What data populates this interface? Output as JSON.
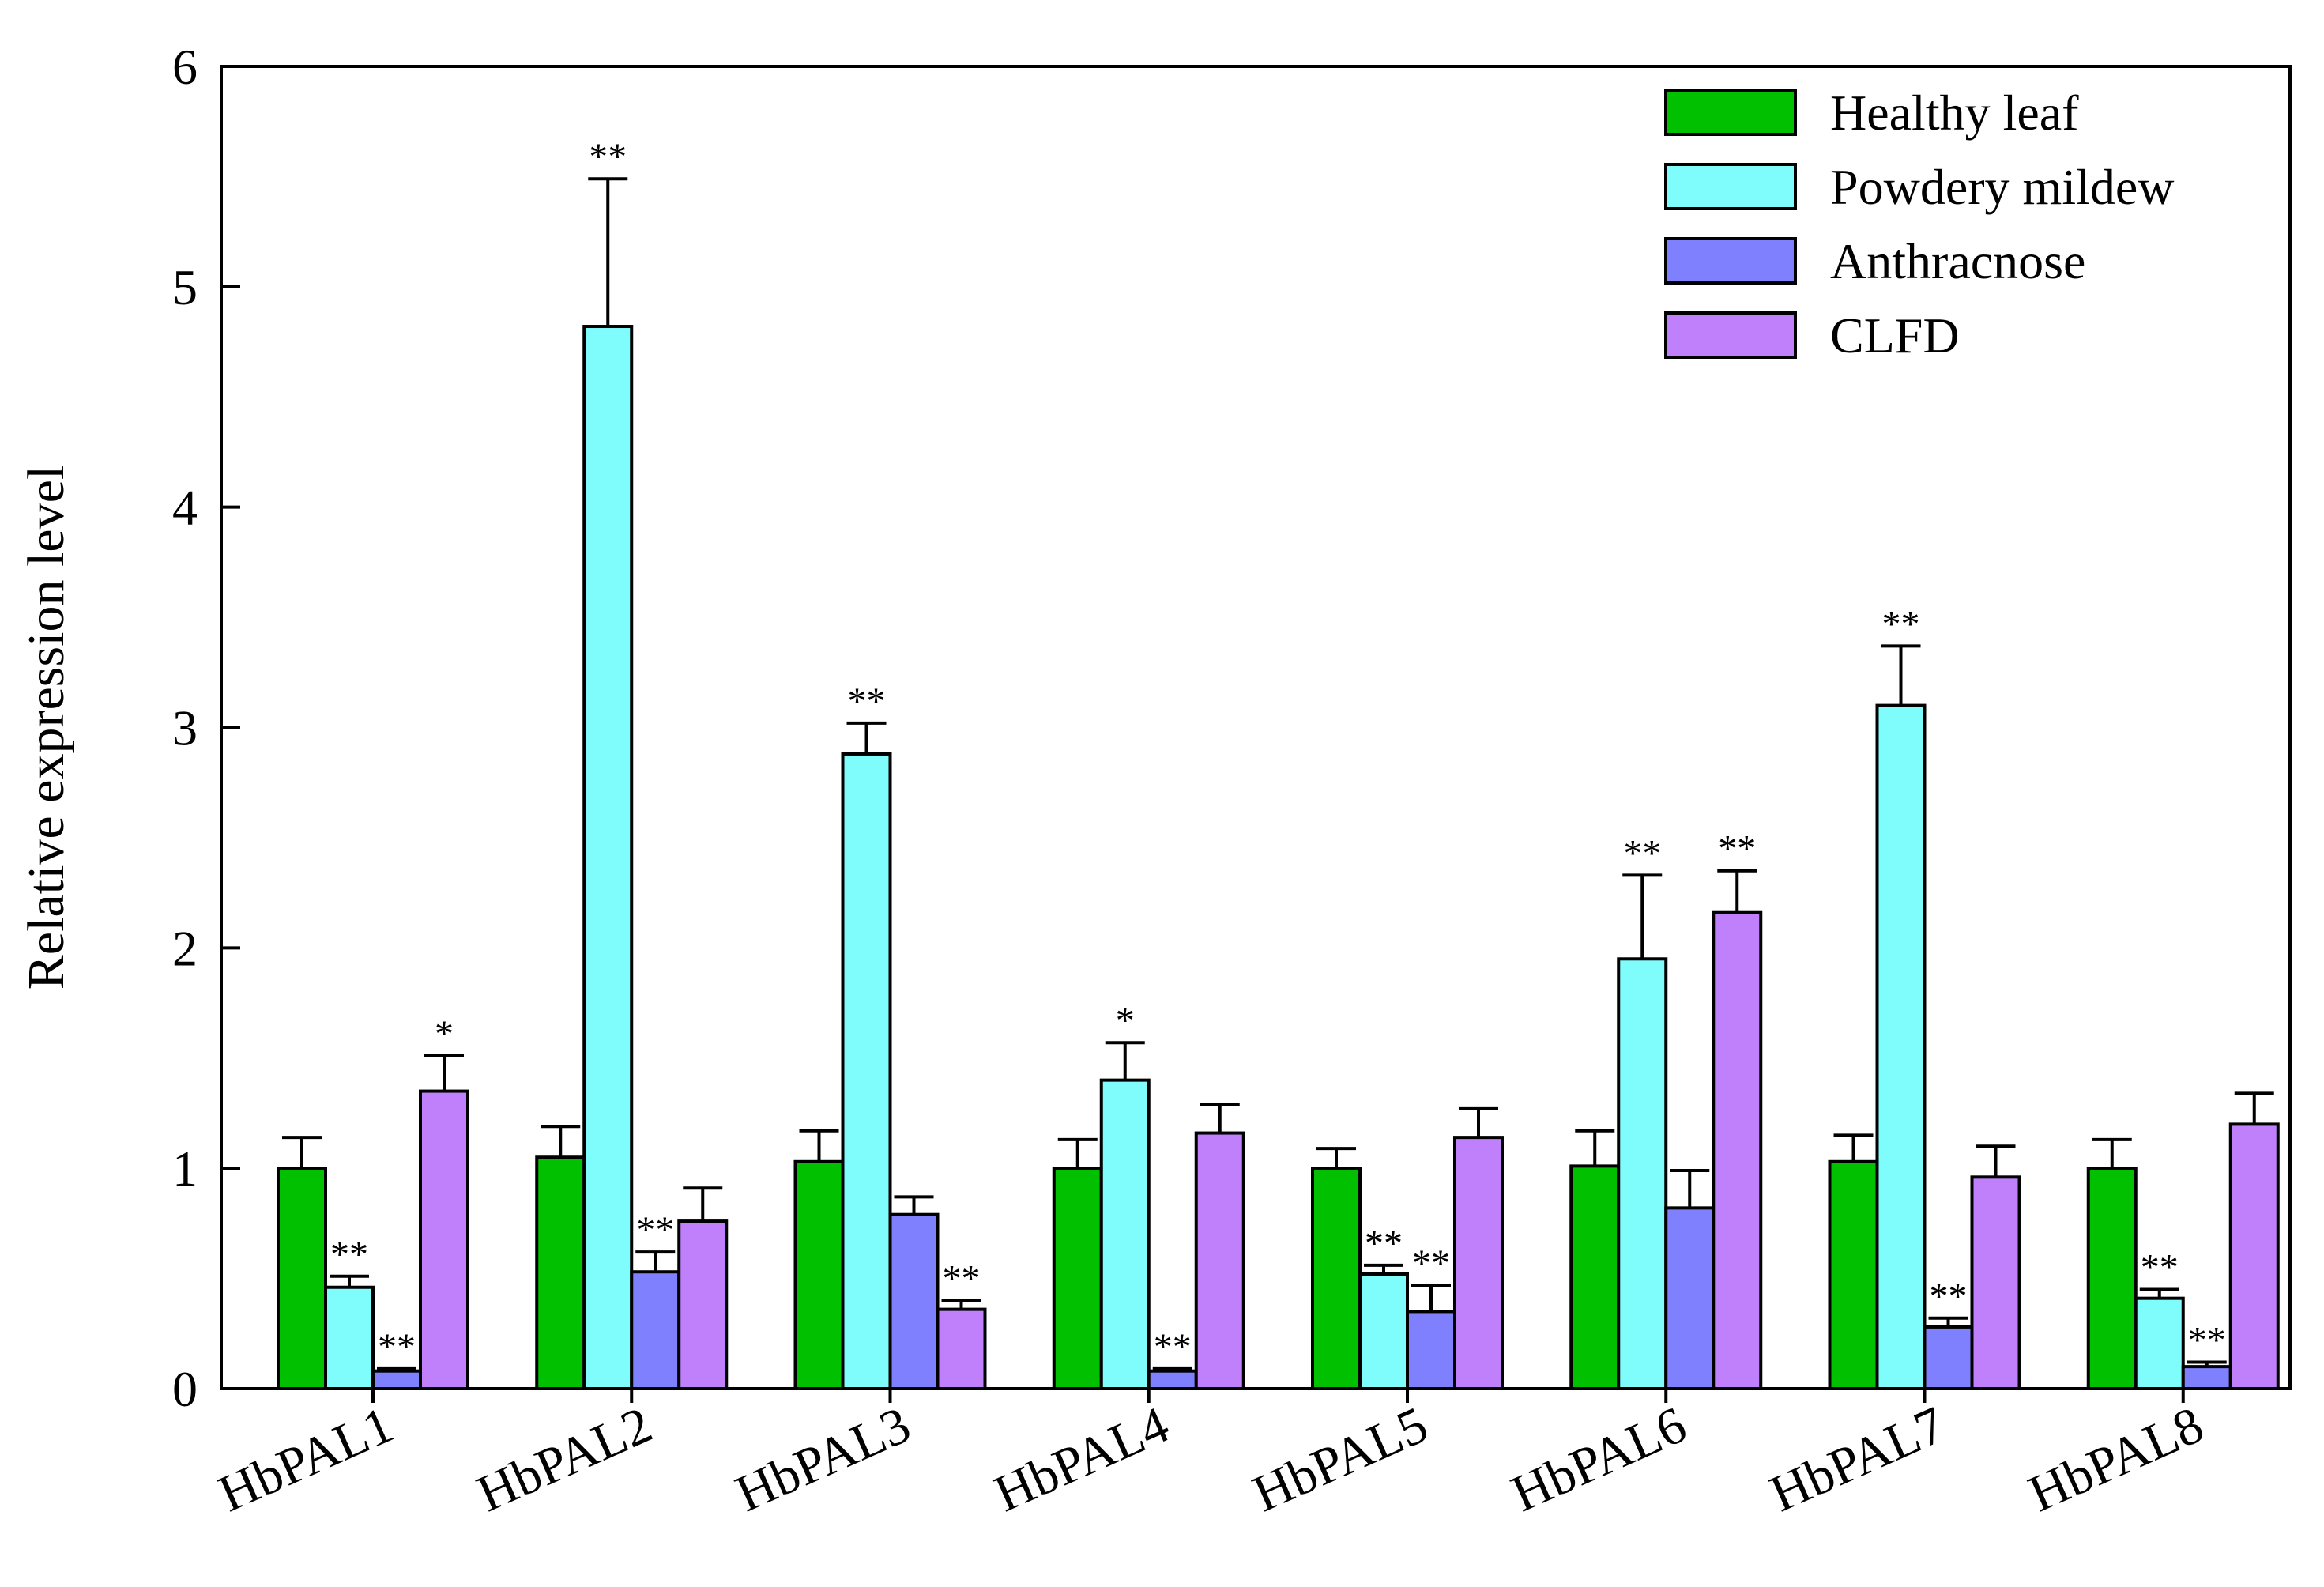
{
  "chart_data": {
    "type": "bar",
    "title": "",
    "xlabel": "",
    "ylabel": "Relative expression level",
    "ylim": [
      0,
      6
    ],
    "yticks": [
      "0",
      "1",
      "2",
      "3",
      "4",
      "5",
      "6"
    ],
    "grid": false,
    "legend_position": "top-right",
    "categories": [
      "HbPAL1",
      "HbPAL2",
      "HbPAL3",
      "HbPAL4",
      "HbPAL5",
      "HbPAL6",
      "HbPAL7",
      "HbPAL8"
    ],
    "series": [
      {
        "name": "Healthy leaf",
        "color": "#00c000",
        "values": [
          1.0,
          1.05,
          1.03,
          1.0,
          1.0,
          1.01,
          1.03,
          1.0
        ],
        "errors": [
          0.14,
          0.14,
          0.14,
          0.13,
          0.09,
          0.16,
          0.12,
          0.13
        ],
        "significance": [
          "",
          "",
          "",
          "",
          "",
          "",
          "",
          ""
        ]
      },
      {
        "name": "Powdery mildew",
        "color": "#7ffcfc",
        "values": [
          0.46,
          4.82,
          2.88,
          1.4,
          0.52,
          1.95,
          3.1,
          0.41
        ],
        "errors": [
          0.05,
          0.67,
          0.14,
          0.17,
          0.04,
          0.38,
          0.27,
          0.04
        ],
        "significance": [
          "**",
          "**",
          "**",
          "*",
          "**",
          "**",
          "**",
          "**"
        ]
      },
      {
        "name": "Anthracnose",
        "color": "#7f80fd",
        "values": [
          0.08,
          0.53,
          0.79,
          0.08,
          0.35,
          0.82,
          0.28,
          0.1
        ],
        "errors": [
          0.01,
          0.09,
          0.08,
          0.01,
          0.12,
          0.17,
          0.04,
          0.02
        ],
        "significance": [
          "**",
          "**",
          "",
          "**",
          "**",
          "",
          "**",
          "**"
        ]
      },
      {
        "name": "CLFD",
        "color": "#c080fc",
        "values": [
          1.35,
          0.76,
          0.36,
          1.16,
          1.14,
          2.16,
          0.96,
          1.2
        ],
        "errors": [
          0.16,
          0.15,
          0.04,
          0.13,
          0.13,
          0.19,
          0.14,
          0.14
        ],
        "significance": [
          "*",
          "",
          "**",
          "",
          "",
          "**",
          "",
          ""
        ]
      }
    ]
  }
}
